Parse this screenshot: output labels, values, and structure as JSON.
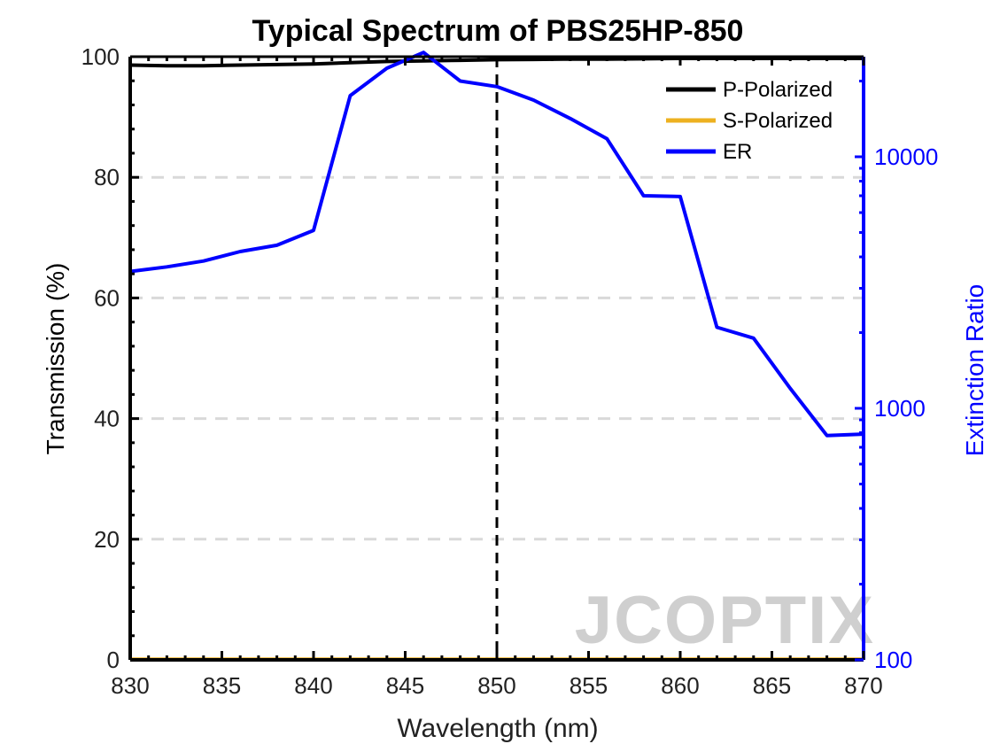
{
  "chart_data": {
    "type": "line",
    "title": "Typical Spectrum of PBS25HP-850",
    "xlabel": "Wavelength (nm)",
    "ylabel": "Transmission (%)",
    "y2label": "Extinction Ratio",
    "xlim": [
      830,
      870
    ],
    "ylim": [
      0,
      100
    ],
    "y2lim": [
      100,
      25000
    ],
    "y2scale": "log",
    "x_ticks": [
      "830",
      "835",
      "840",
      "845",
      "850",
      "855",
      "860",
      "865",
      "870"
    ],
    "y_ticks": [
      "0",
      "20",
      "40",
      "60",
      "80",
      "100"
    ],
    "y2_ticks": [
      "100",
      "1000",
      "10000"
    ],
    "grid": "horizontal-dashed",
    "legend_position": "top-right",
    "reference_line_x": 850,
    "watermark": "JCOPTIX",
    "series": [
      {
        "name": "P-Polarized",
        "axis": "left",
        "color": "#000000",
        "x": [
          830,
          832,
          834,
          836,
          838,
          840,
          842,
          844,
          846,
          848,
          850,
          852,
          854,
          856,
          858,
          860,
          862,
          864,
          866,
          868,
          870
        ],
        "y": [
          98.6,
          98.5,
          98.5,
          98.6,
          98.7,
          98.8,
          99.0,
          99.2,
          99.3,
          99.4,
          99.5,
          99.55,
          99.6,
          99.6,
          99.65,
          99.7,
          99.7,
          99.7,
          99.7,
          99.7,
          99.7
        ]
      },
      {
        "name": "S-Polarized",
        "axis": "left",
        "color": "#EDB120",
        "x": [
          830,
          835,
          840,
          845,
          850,
          855,
          860,
          865,
          870
        ],
        "y": [
          0.1,
          0.1,
          0.1,
          0.1,
          0.1,
          0.1,
          0.1,
          0.1,
          0.1
        ]
      },
      {
        "name": "ER",
        "axis": "right",
        "color": "#0000FF",
        "x": [
          830,
          832,
          834,
          836,
          838,
          840,
          842,
          844,
          846,
          848,
          850,
          852,
          854,
          856,
          858,
          860,
          862,
          864,
          866,
          868,
          870
        ],
        "y": [
          3500,
          3650,
          3850,
          4200,
          4450,
          5100,
          17500,
          22500,
          26000,
          20000,
          19000,
          16800,
          14200,
          11800,
          7000,
          6950,
          2100,
          1900,
          1200,
          780,
          790
        ]
      }
    ]
  }
}
